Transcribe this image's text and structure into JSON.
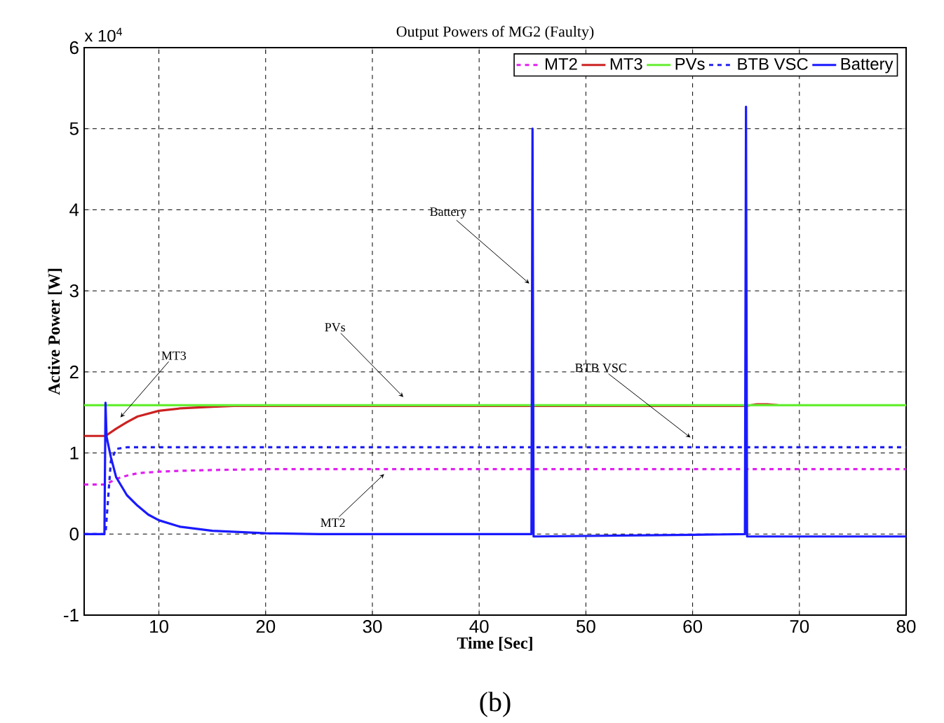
{
  "chart_data": {
    "type": "line",
    "title": "Output Powers of MG2 (Faulty)",
    "xlabel": "Time [Sec]",
    "ylabel": "Active Power [W]",
    "xlim": [
      3,
      80
    ],
    "xticks": [
      10,
      20,
      30,
      40,
      50,
      60,
      70,
      80
    ],
    "ylim": [
      -1,
      6
    ],
    "yticks": [
      -1,
      0,
      1,
      2,
      3,
      4,
      5,
      6
    ],
    "grid": true,
    "legend": "top right",
    "marker": "none",
    "series": [
      {
        "name": "MT2",
        "color": "#e020f0",
        "line_style": "dashed",
        "x": [
          3,
          5,
          6,
          7,
          8,
          10,
          12,
          15,
          20,
          80
        ],
        "values": [
          0.61,
          0.61,
          0.68,
          0.72,
          0.75,
          0.77,
          0.78,
          0.79,
          0.8,
          0.8
        ]
      },
      {
        "name": "MT3",
        "color": "#cc2222",
        "line_style": "solid",
        "x": [
          3,
          5,
          6,
          7,
          8,
          10,
          12,
          15,
          17,
          20,
          65,
          66,
          67,
          68
        ],
        "values": [
          1.21,
          1.21,
          1.3,
          1.38,
          1.45,
          1.52,
          1.55,
          1.57,
          1.58,
          1.58,
          1.58,
          1.6,
          1.6,
          1.59
        ]
      },
      {
        "name": "PVs",
        "color": "#66ee33",
        "line_style": "solid",
        "x": [
          3,
          80
        ],
        "values": [
          1.59,
          1.59
        ]
      },
      {
        "name": "BTB VSC",
        "color": "#2222ee",
        "line_style": "dashed",
        "x": [
          3,
          5,
          5.5,
          6,
          7,
          80
        ],
        "values": [
          0,
          0,
          0.9,
          1.05,
          1.07,
          1.07
        ]
      },
      {
        "name": "Battery",
        "color": "#1a1aff",
        "line_style": "solid",
        "x": [
          3,
          4.9,
          5,
          5.1,
          5.5,
          6,
          7,
          8,
          9,
          10,
          12,
          15,
          20,
          25,
          44.9,
          45,
          45.1,
          60,
          64.9,
          65,
          65.1,
          80
        ],
        "values": [
          0,
          0,
          1.62,
          1.2,
          0.95,
          0.7,
          0.48,
          0.35,
          0.24,
          0.17,
          0.09,
          0.04,
          0.01,
          0,
          0,
          5.0,
          -0.03,
          -0.01,
          0,
          5.27,
          -0.03,
          -0.03
        ]
      }
    ],
    "annotations": [
      {
        "text": "MT3",
        "x": 6.4,
        "y": 1.44
      },
      {
        "text": "PVs",
        "x": 32.9,
        "y": 1.69
      },
      {
        "text": "Battery",
        "x": 44.7,
        "y": 3.09
      },
      {
        "text": "BTB VSC",
        "x": 59.8,
        "y": 1.19
      },
      {
        "text": "MT2",
        "x": 31.1,
        "y": 0.74
      },
      "x 10$^{4}$",
      "(b)"
    ]
  }
}
